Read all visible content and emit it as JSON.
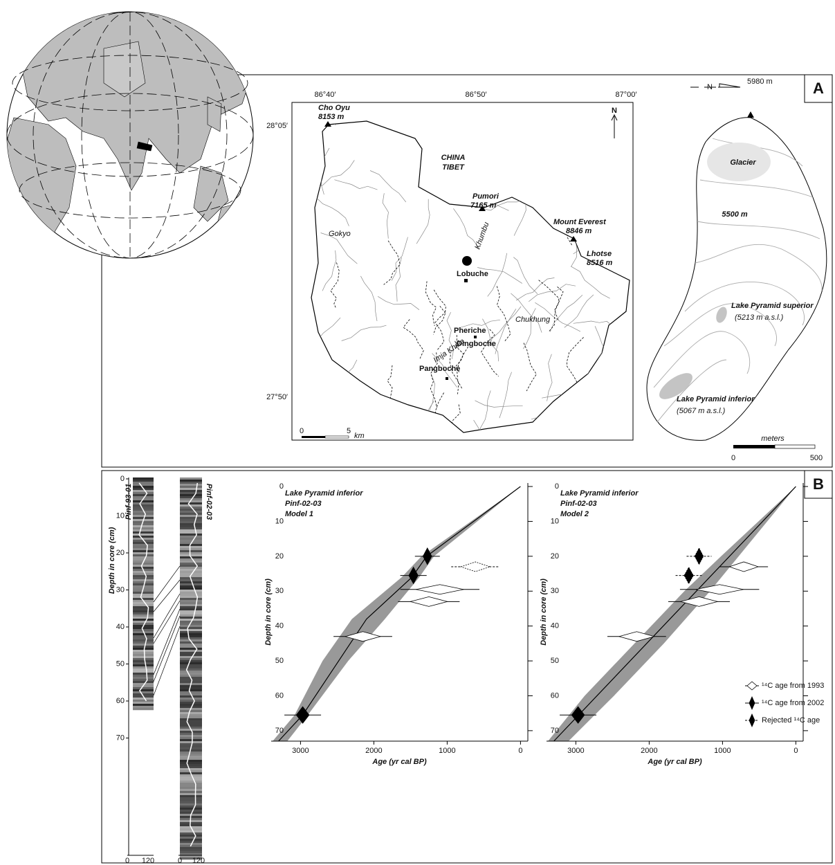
{
  "figure": {
    "panel_a": {
      "label": "A",
      "map": {
        "lon_labels": [
          "86°40′",
          "86°50′",
          "87°00′"
        ],
        "lat_labels": [
          "28°05′",
          "27°50′"
        ],
        "north": "N",
        "peaks": [
          {
            "name": "Cho Oyu",
            "height": "8153 m"
          },
          {
            "name": "Pumori",
            "height": "7165 m"
          },
          {
            "name": "Mount Everest",
            "height": "8846 m"
          },
          {
            "name": "Lhotse",
            "height": "8516 m"
          }
        ],
        "region": [
          "CHINA",
          "TIBET"
        ],
        "places": [
          "Lobuche",
          "Pheriche",
          "Dingboche",
          "Pangboche"
        ],
        "minor_places": [
          "Gokyo",
          "Chukhung",
          "Khumbu",
          "Imja Khola"
        ],
        "scale": {
          "start": "0",
          "end": "5",
          "unit": "km"
        }
      },
      "lake_map": {
        "north": "N",
        "summit": "5980 m",
        "glacier": "Glacier",
        "contour": "5500 m",
        "lakes": [
          {
            "name": "Lake Pyramid superior",
            "elevation": "(5213 m a.s.l.)"
          },
          {
            "name": "Lake Pyramid inferior",
            "elevation": "(5067 m a.s.l.)"
          }
        ],
        "scale": {
          "unit": "meters",
          "start": "0",
          "end": "500"
        }
      }
    },
    "panel_b": {
      "label": "B",
      "cores": {
        "names": [
          "Pinf-93-01",
          "Pinf-02-03"
        ],
        "axis_label": "Depth in core (cm)",
        "depth_ticks": [
          0,
          10,
          20,
          30,
          40,
          50,
          60,
          70
        ],
        "width_ticks": [
          "0",
          "120"
        ]
      }
    }
  },
  "chart_data": [
    {
      "type": "age-depth",
      "title": [
        "Lake Pyramid inferior",
        "Pinf-02-03",
        "Model 1"
      ],
      "xlabel": "Age (yr cal BP)",
      "ylabel": "Depth in core (cm)",
      "xlim": [
        3400,
        -100
      ],
      "ylim": [
        -1,
        73
      ],
      "xticks": [
        3000,
        2000,
        1000,
        0
      ],
      "yticks": [
        0,
        10,
        20,
        30,
        40,
        50,
        60,
        70
      ],
      "band": {
        "color": "#999999",
        "values": [
          0,
          20,
          26,
          38,
          50,
          65.5,
          73
        ],
        "x_min": [
          0,
          1180,
          1380,
          1850,
          2350,
          2900,
          3180
        ],
        "x_max": [
          0,
          1350,
          1620,
          2300,
          2700,
          3080,
          3380
        ]
      },
      "model": {
        "color": "#000000",
        "x": [
          0,
          1280,
          1480,
          2100,
          2970,
          3300
        ],
        "values": [
          0,
          20,
          26,
          38,
          65.5,
          73
        ]
      },
      "series": [
        {
          "color": "#ffffff",
          "dashed": false,
          "x": [
            1100,
            1250,
            2150
          ],
          "values": [
            29.5,
            33,
            43
          ],
          "err": [
            540,
            420,
            400
          ]
        },
        {
          "color": "#000000",
          "dashed": false,
          "x": [
            1270,
            1460,
            2970
          ],
          "values": [
            20,
            25.5,
            65.5
          ],
          "err": [
            170,
            180,
            250
          ]
        },
        {
          "color": "#ffffff",
          "dashed": true,
          "x": [
            615
          ],
          "values": [
            23
          ],
          "err": [
            330
          ]
        }
      ]
    },
    {
      "type": "age-depth",
      "title": [
        "Lake Pyramid inferior",
        "Pinf-02-03",
        "Model 2"
      ],
      "xlabel": "Age (yr cal BP)",
      "ylabel": "Depth in core (cm)",
      "xlim": [
        3400,
        -100
      ],
      "ylim": [
        -1,
        73
      ],
      "xticks": [
        3000,
        2000,
        1000,
        0
      ],
      "yticks": [
        0,
        10,
        20,
        30,
        40,
        50,
        60,
        70
      ],
      "legend": "lower right",
      "band": {
        "color": "#999999",
        "values": [
          0,
          20,
          30,
          45,
          60,
          73
        ],
        "x_min": [
          0,
          780,
          1170,
          1800,
          2480,
          3100
        ],
        "x_max": [
          0,
          1020,
          1520,
          2200,
          2880,
          3380
        ]
      },
      "model": {
        "color": "#000000",
        "x": [
          0,
          3300
        ],
        "values": [
          0,
          73
        ]
      },
      "series": [
        {
          "name": "¹⁴C age from 1993",
          "color": "#ffffff",
          "dashed": false,
          "x": [
            710,
            1040,
            1320,
            2170
          ],
          "values": [
            23,
            29.5,
            33,
            43
          ],
          "err": [
            330,
            540,
            420,
            400
          ]
        },
        {
          "name": "¹⁴C age from 2002",
          "color": "#000000",
          "dashed": false,
          "x": [
            2970
          ],
          "values": [
            65.5
          ],
          "err": [
            250
          ]
        },
        {
          "name": "Rejected ¹⁴C age",
          "color": "#000000",
          "dashed": true,
          "x": [
            1320,
            1460
          ],
          "values": [
            20,
            25.5
          ],
          "err": [
            170,
            180
          ]
        }
      ]
    }
  ]
}
